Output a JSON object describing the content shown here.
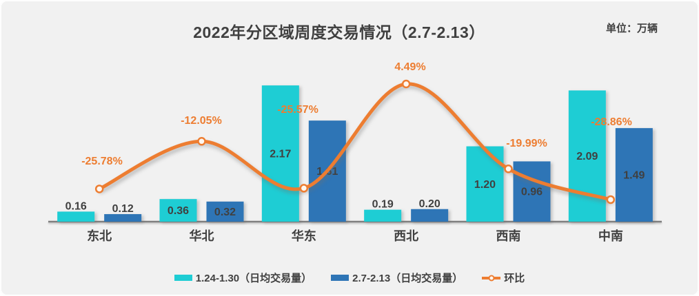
{
  "header": {
    "title": "2022年分区域周度交易情况（2.7-2.13）",
    "unit_label": "单位：万辆"
  },
  "colors": {
    "series1": "#1ecdd4",
    "series2": "#2e75b6",
    "line": "#ed7d31",
    "text": "#404040",
    "axis": "#7f7f7f",
    "background": "#f1f1f1",
    "marker_fill": "#fff7f0"
  },
  "legend": {
    "items": [
      {
        "label": "1.24-1.30（日均交易量）",
        "swatch": "bar",
        "color": "#1ecdd4"
      },
      {
        "label": "2.7-2.13（日均交易量）",
        "swatch": "bar",
        "color": "#2e75b6"
      },
      {
        "label": "环比",
        "swatch": "line",
        "color": "#ed7d31"
      }
    ]
  },
  "chart_data": {
    "type": "bar",
    "subtype": "combo-bar-line",
    "title": "2022年分区域周度交易情况（2.7-2.13）",
    "unit": "万辆",
    "categories": [
      "东北",
      "华北",
      "华东",
      "西北",
      "西南",
      "中南"
    ],
    "series": [
      {
        "name": "1.24-1.30（日均交易量）",
        "type": "bar",
        "color": "#1ecdd4",
        "values": [
          0.16,
          0.36,
          2.17,
          0.19,
          1.2,
          2.09
        ],
        "labels": [
          "0.16",
          "0.36",
          "2.17",
          "0.19",
          "1.20",
          "2.09"
        ]
      },
      {
        "name": "2.7-2.13（日均交易量）",
        "type": "bar",
        "color": "#2e75b6",
        "values": [
          0.12,
          0.32,
          1.61,
          0.2,
          0.96,
          1.49
        ],
        "labels": [
          "0.12",
          "0.32",
          "1.61",
          "0.20",
          "0.96",
          "1.49"
        ]
      },
      {
        "name": "环比",
        "type": "line",
        "color": "#ed7d31",
        "axis": "percent",
        "values": [
          -25.78,
          -12.05,
          -25.57,
          4.49,
          -19.99,
          -28.86
        ],
        "labels": [
          "-25.78%",
          "-12.05%",
          "-25.57%",
          "4.49%",
          "-19.99%",
          "-28.86%"
        ]
      }
    ],
    "value_axis": {
      "min": 0,
      "max_estimate": 2.8,
      "visible": false
    },
    "percent_axis": {
      "min_estimate": -35,
      "max_estimate": 10,
      "visible": false
    },
    "grid": false,
    "legend_position": "bottom"
  }
}
